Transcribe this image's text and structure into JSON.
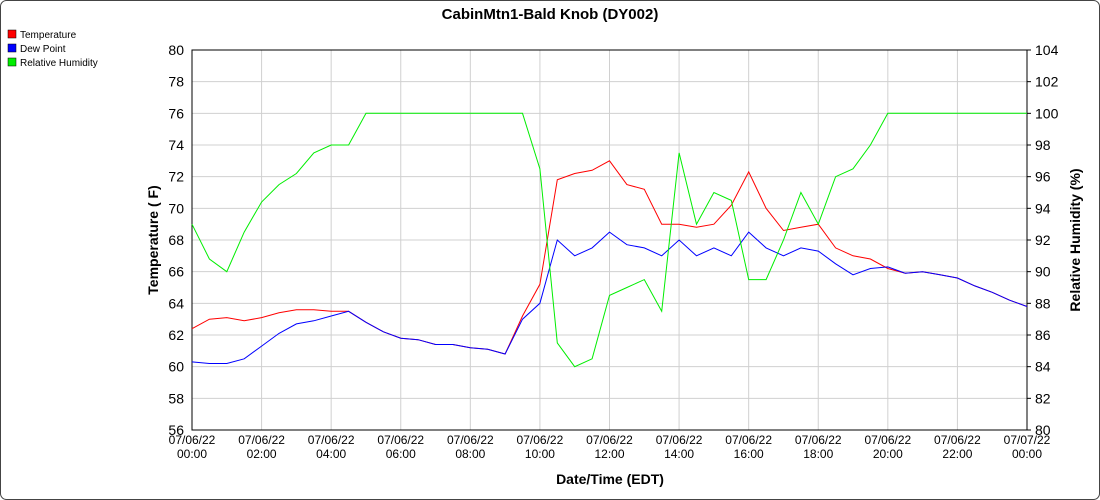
{
  "chart_data": {
    "type": "line",
    "title": "CabinMtn1-Bald Knob (DY002)",
    "x_label": "Date/Time (EDT)",
    "y_label": "Temperature ( F)",
    "y2_label": "Relative Humidity (%)",
    "x": [
      0,
      0.5,
      1,
      1.5,
      2,
      2.5,
      3,
      3.5,
      4,
      4.5,
      5,
      5.5,
      6,
      6.5,
      7,
      7.5,
      8,
      8.5,
      9,
      9.5,
      10,
      10.5,
      11,
      11.5,
      12,
      12.5,
      13,
      13.5,
      14,
      14.5,
      15,
      15.5,
      16,
      16.5,
      17,
      17.5,
      18,
      18.5,
      19,
      19.5,
      20,
      20.5,
      21,
      21.5,
      22,
      22.5,
      23,
      23.5,
      24
    ],
    "series": [
      {
        "name": "Temperature",
        "color": "#ff0000",
        "values": [
          62.4,
          63.0,
          63.1,
          62.9,
          63.1,
          63.4,
          63.6,
          63.6,
          63.5,
          63.5,
          62.8,
          62.2,
          61.8,
          61.7,
          61.4,
          61.4,
          61.2,
          61.1,
          60.8,
          63.2,
          65.2,
          71.8,
          72.2,
          72.4,
          73.0,
          71.5,
          71.2,
          69.0,
          69.0,
          68.8,
          69.0,
          70.2,
          72.3,
          70.0,
          68.6,
          68.8,
          69.0,
          67.5,
          67.0,
          66.8,
          66.2,
          65.9,
          66.0,
          65.8,
          65.6,
          65.1,
          64.7,
          64.2,
          63.8
        ]
      },
      {
        "name": "Dew Point",
        "color": "#0000ff",
        "values": [
          60.3,
          60.2,
          60.2,
          60.5,
          61.3,
          62.1,
          62.7,
          62.9,
          63.2,
          63.5,
          62.8,
          62.2,
          61.8,
          61.7,
          61.4,
          61.4,
          61.2,
          61.1,
          60.8,
          63.0,
          64.0,
          68.0,
          67.0,
          67.5,
          68.5,
          67.7,
          67.5,
          67.0,
          68.0,
          67.0,
          67.5,
          67.0,
          68.5,
          67.5,
          67.0,
          67.5,
          67.3,
          66.5,
          65.8,
          66.2,
          66.3,
          65.9,
          66.0,
          65.8,
          65.6,
          65.1,
          64.7,
          64.2,
          63.8
        ]
      },
      {
        "name": "Relative Humidity",
        "color": "#00ee00",
        "axis": "y2",
        "values": [
          93,
          90.8,
          90,
          92.5,
          94.4,
          95.5,
          96.2,
          97.5,
          98,
          98,
          100,
          100,
          100,
          100,
          100,
          100,
          100,
          100,
          100,
          100,
          96.5,
          85.5,
          84,
          84.5,
          88.5,
          89,
          89.5,
          87.5,
          97.5,
          93,
          95,
          94.5,
          89.5,
          89.5,
          92,
          95,
          93,
          96,
          96.5,
          98,
          100,
          100,
          100,
          100,
          100,
          100,
          100,
          100,
          100
        ]
      }
    ],
    "xlim": [
      0,
      24
    ],
    "xticks": [
      {
        "value": 0,
        "label": "07/06/22 00:00"
      },
      {
        "value": 2,
        "label": "07/06/22 02:00"
      },
      {
        "value": 4,
        "label": "07/06/22 04:00"
      },
      {
        "value": 6,
        "label": "07/06/22 06:00"
      },
      {
        "value": 8,
        "label": "07/06/22 08:00"
      },
      {
        "value": 10,
        "label": "07/06/22 10:00"
      },
      {
        "value": 12,
        "label": "07/06/22 12:00"
      },
      {
        "value": 14,
        "label": "07/06/22 14:00"
      },
      {
        "value": 16,
        "label": "07/06/22 16:00"
      },
      {
        "value": 18,
        "label": "07/06/22 18:00"
      },
      {
        "value": 20,
        "label": "07/06/22 20:00"
      },
      {
        "value": 22,
        "label": "07/06/22 22:00"
      },
      {
        "value": 24,
        "label": "07/07/22 00:00"
      }
    ],
    "ylim": [
      56,
      80
    ],
    "yticks": [
      56,
      58,
      60,
      62,
      64,
      66,
      68,
      70,
      72,
      74,
      76,
      78,
      80
    ],
    "y2lim": [
      80,
      104
    ],
    "y2ticks": [
      80,
      82,
      84,
      86,
      88,
      90,
      92,
      94,
      96,
      98,
      100,
      102,
      104
    ],
    "grid": true,
    "legend": "top-left"
  }
}
